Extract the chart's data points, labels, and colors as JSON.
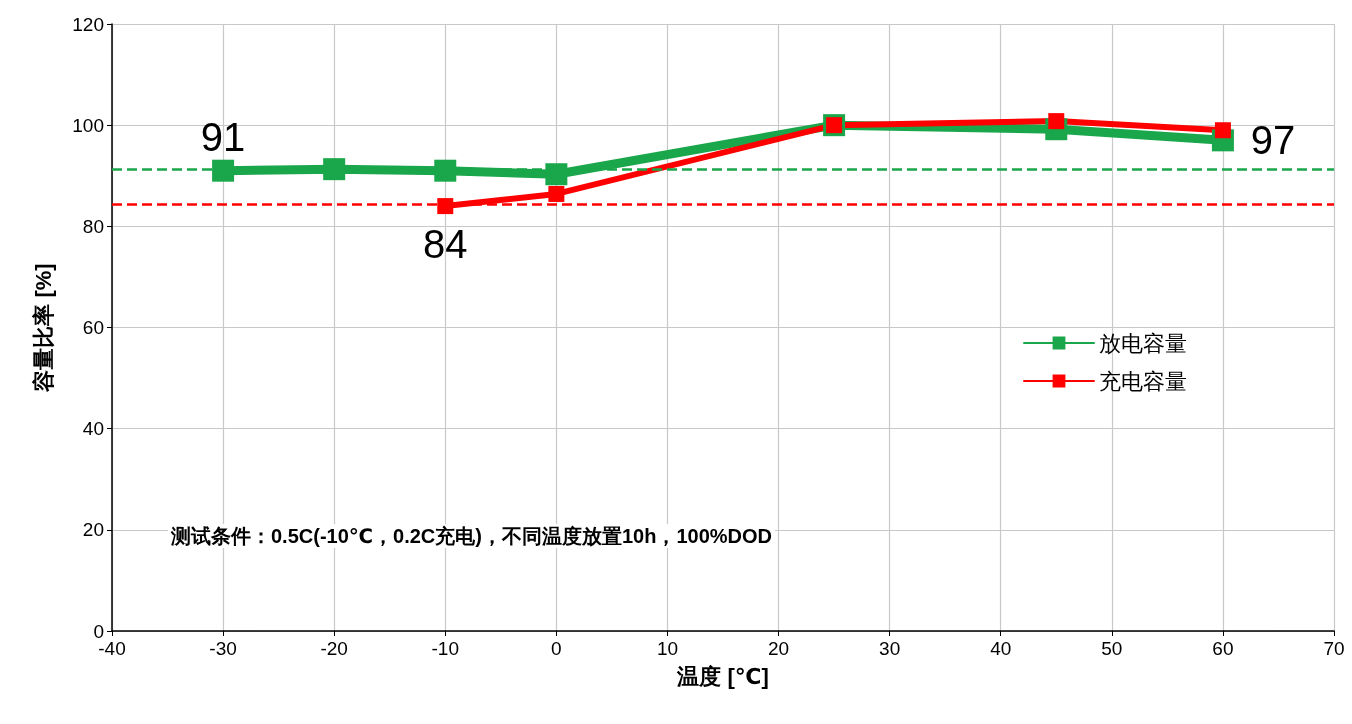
{
  "chart_data": {
    "type": "line",
    "xlabel": "温度 [℃]",
    "ylabel": "容量比率 [%]",
    "x": [
      -30,
      -20,
      -10,
      0,
      25,
      45,
      60
    ],
    "series": [
      {
        "name": "放电容量",
        "color": "#1aa64a",
        "values": [
          91,
          91.3,
          91,
          90.3,
          100,
          99.2,
          97
        ]
      },
      {
        "name": "充电容量",
        "color": "#ff0000",
        "values": [
          null,
          null,
          84,
          86.4,
          100,
          100.8,
          99
        ]
      }
    ],
    "xlim": [
      -40,
      70
    ],
    "xticks": [
      -40,
      -30,
      -20,
      -10,
      0,
      10,
      20,
      30,
      40,
      50,
      60,
      70
    ],
    "ylim": [
      0,
      120
    ],
    "yticks": [
      0,
      20,
      40,
      60,
      80,
      100,
      120
    ],
    "ref_lines": [
      {
        "axis": "y",
        "value": 91.3,
        "color": "#1aa64a",
        "line_style": "dashed"
      },
      {
        "axis": "y",
        "value": 84.4,
        "color": "#ff0000",
        "line_style": "dashed"
      }
    ],
    "annotations": [
      {
        "text": "91",
        "x": -30,
        "y": 91
      },
      {
        "text": "84",
        "x": -10,
        "y": 84
      },
      {
        "text": "97",
        "x": 60,
        "y": 97
      },
      "测试条件：0.5C(-10℃，0.2C充电)，不同温度放置10h，100%DOD"
    ],
    "grid": true,
    "legend": "right",
    "marker": "square",
    "line_style": "solid"
  }
}
